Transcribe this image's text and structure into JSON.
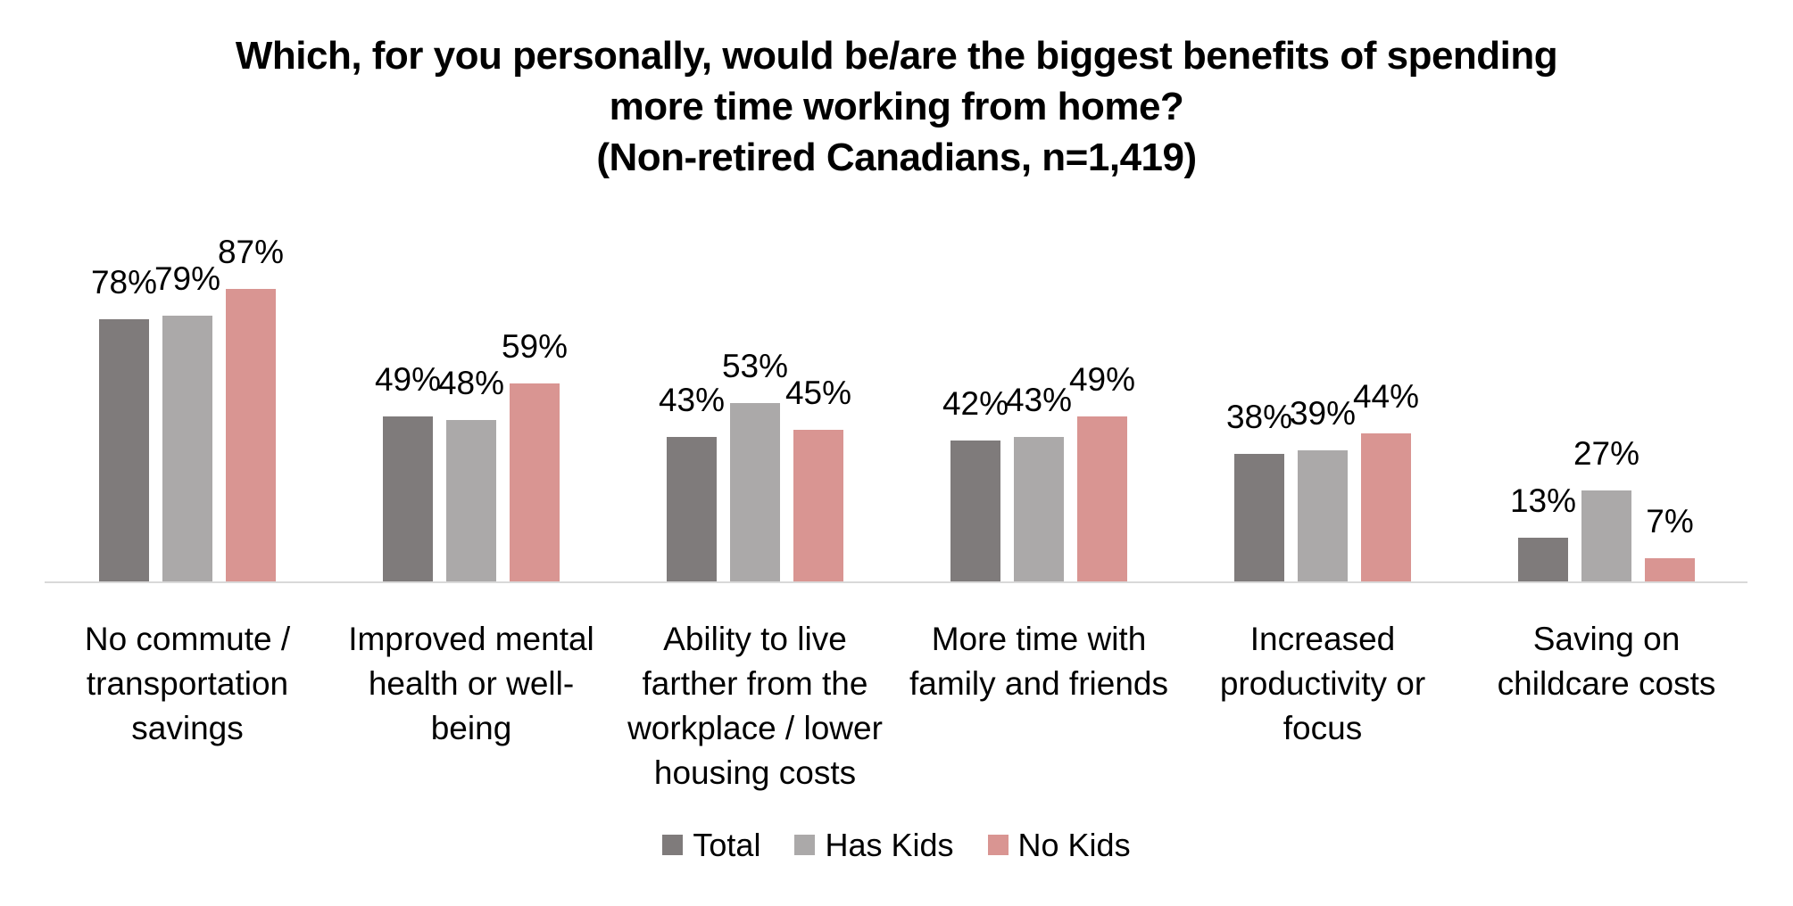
{
  "title": {
    "line1": "Which, for you personally, would be/are the biggest benefits of spending",
    "line2": "more time working from home?",
    "line3": "(Non-retired Canadians, n=1,419)"
  },
  "colors": {
    "total": "#7F7B7B",
    "has_kids": "#ABA9A9",
    "no_kids": "#D99592",
    "axis_line": "#D9D9D9"
  },
  "chart_data": {
    "type": "bar",
    "title": "Which, for you personally, would be/are the biggest benefits of spending more time working from home? (Non-retired Canadians, n=1,419)",
    "categories": [
      "No commute / transportation savings",
      "Improved mental health or well-being",
      "Ability to live farther from the workplace / lower housing costs",
      "More time with family and friends",
      "Increased productivity or focus",
      "Saving on childcare costs"
    ],
    "categories_lines": [
      [
        "No commute /",
        "transportation",
        "savings"
      ],
      [
        "Improved mental",
        "health or well-",
        "being"
      ],
      [
        "Ability to live",
        "farther from the",
        "workplace / lower",
        "housing costs"
      ],
      [
        "More time with",
        "family and friends"
      ],
      [
        "Increased",
        "productivity or",
        "focus"
      ],
      [
        "Saving on",
        "childcare costs"
      ]
    ],
    "series": [
      {
        "name": "Total",
        "color": "#7F7B7B",
        "values": [
          78,
          49,
          43,
          42,
          38,
          13
        ]
      },
      {
        "name": "Has Kids",
        "color": "#ABA9A9",
        "values": [
          79,
          48,
          53,
          43,
          39,
          27
        ]
      },
      {
        "name": "No Kids",
        "color": "#D99592",
        "values": [
          87,
          59,
          45,
          49,
          44,
          7
        ]
      }
    ],
    "value_suffix": "%",
    "ylim": [
      0,
      100
    ],
    "grid": false,
    "data_labels": "outside-end",
    "legend_position": "bottom"
  }
}
